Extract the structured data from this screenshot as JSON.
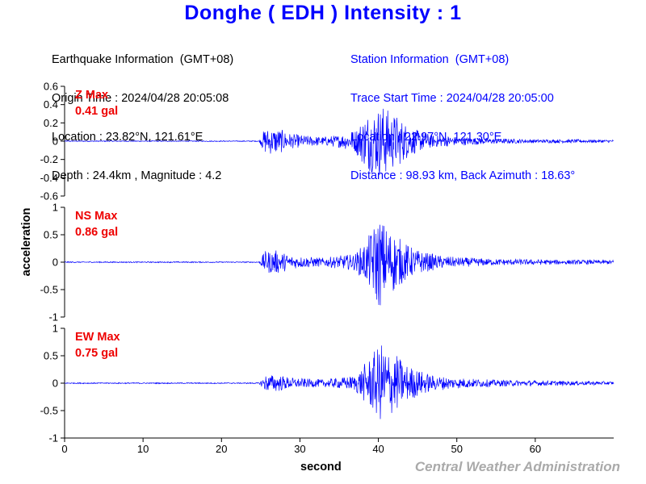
{
  "title": "Donghe ( EDH ) Intensity : 1",
  "earthquake_info": {
    "heading": "Earthquake Information  (GMT+08)",
    "origin_time": "Origin Time : 2024/04/28 20:05:08",
    "location": "Location : 23.82°N, 121.61°E",
    "depth_magnitude": "Depth : 24.4km , Magnitude : 4.2"
  },
  "station_info": {
    "heading": "Station Information  (GMT+08)",
    "trace_start": "Trace Start Time : 2024/04/28 20:05:00",
    "location": "Location : 22.97°N, 121.30°E",
    "distance": "Distance : 98.93 km, Back Azimuth : 18.63°"
  },
  "ylabel": "acceleration",
  "xlabel": "second",
  "credit": "Central Weather Administration",
  "colors": {
    "title": "#0000ff",
    "trace": "#0000ff",
    "max_label": "#ee0000",
    "credit": "#aaaaaa"
  },
  "chart_data": [
    {
      "type": "line",
      "component": "Z",
      "max_label": "Z Max",
      "max_value": "0.41 gal",
      "xlim": [
        0,
        70
      ],
      "ylim": [
        -0.6,
        0.6
      ],
      "yticks": [
        "0.6",
        "0.4",
        "0.2",
        "0",
        "-0.2",
        "-0.4",
        "-0.6"
      ],
      "xticks": [],
      "envelope": {
        "x": [
          0,
          24.8,
          25.5,
          27,
          29,
          31,
          33,
          35,
          37,
          38.5,
          39.5,
          40.5,
          41.5,
          42.5,
          43.5,
          45,
          47,
          50,
          55,
          60,
          65,
          70
        ],
        "amp": [
          0.005,
          0.005,
          0.14,
          0.15,
          0.08,
          0.06,
          0.05,
          0.07,
          0.12,
          0.32,
          0.36,
          0.41,
          0.33,
          0.28,
          0.2,
          0.12,
          0.07,
          0.05,
          0.03,
          0.02,
          0.02,
          0.015
        ]
      }
    },
    {
      "type": "line",
      "component": "NS",
      "max_label": "NS Max",
      "max_value": "0.86 gal",
      "xlim": [
        0,
        70
      ],
      "ylim": [
        -1,
        1
      ],
      "yticks": [
        "1",
        "0.5",
        "0",
        "-0.5",
        "-1"
      ],
      "xticks": [],
      "envelope": {
        "x": [
          0,
          24.8,
          25.5,
          27,
          29,
          31,
          33,
          35,
          37,
          38.5,
          39.5,
          40,
          41,
          42,
          43,
          44.5,
          46,
          48,
          50,
          55,
          60,
          65,
          70
        ],
        "amp": [
          0.01,
          0.01,
          0.2,
          0.22,
          0.12,
          0.1,
          0.08,
          0.12,
          0.15,
          0.4,
          0.7,
          0.86,
          0.68,
          0.55,
          0.4,
          0.25,
          0.18,
          0.12,
          0.09,
          0.06,
          0.05,
          0.04,
          0.04
        ]
      }
    },
    {
      "type": "line",
      "component": "EW",
      "max_label": "EW Max",
      "max_value": "0.75 gal",
      "xlim": [
        0,
        70
      ],
      "ylim": [
        -1,
        1
      ],
      "yticks": [
        "1",
        "0.5",
        "0",
        "-0.5",
        "-1"
      ],
      "xticks": [
        "0",
        "10",
        "20",
        "30",
        "40",
        "50",
        "60"
      ],
      "envelope": {
        "x": [
          0,
          24.8,
          25.5,
          27,
          29,
          31,
          33,
          35,
          37,
          38.5,
          39.5,
          40.5,
          41.5,
          42.5,
          43.5,
          45,
          47,
          50,
          55,
          60,
          65,
          70
        ],
        "amp": [
          0.01,
          0.01,
          0.15,
          0.16,
          0.1,
          0.08,
          0.07,
          0.1,
          0.14,
          0.4,
          0.58,
          0.75,
          0.6,
          0.5,
          0.35,
          0.25,
          0.14,
          0.1,
          0.06,
          0.05,
          0.04,
          0.03
        ]
      }
    }
  ]
}
